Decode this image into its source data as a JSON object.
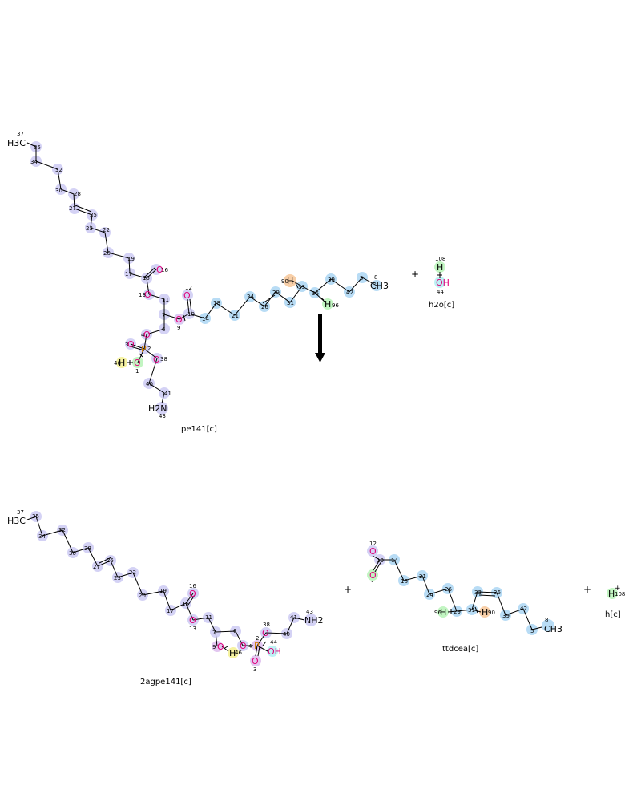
{
  "reaction": {
    "arrow": "down",
    "plus_sign": "+"
  },
  "molecules": {
    "pe141": {
      "name": "pe141[c]",
      "labels": {
        "methyl": "H3C",
        "amine": "H2N",
        "h_46": "H",
        "o1": "O",
        "o3": "O",
        "o4": "O",
        "o9": "O",
        "o12": "O",
        "o13": "O",
        "o16": "O",
        "o38": "O",
        "p2": "P",
        "h90": "H",
        "h96": "H",
        "ch3_8": "CH3"
      },
      "atom_numbers": [
        "37",
        "35",
        "34",
        "32",
        "30",
        "28",
        "27",
        "25",
        "23",
        "22",
        "20",
        "19",
        "17",
        "15",
        "16",
        "13",
        "11",
        "7",
        "6",
        "4",
        "3",
        "2",
        "1",
        "46",
        "38",
        "40",
        "41",
        "43",
        "12",
        "10",
        "9",
        "14",
        "18",
        "21",
        "24",
        "26",
        "29",
        "31",
        "90",
        "33",
        "36",
        "96",
        "39",
        "42",
        "5",
        "8"
      ]
    },
    "h2o": {
      "name": "h2o[c]",
      "labels": {
        "h": "H",
        "oh": "OH"
      },
      "atom_numbers": [
        "108",
        "44"
      ]
    },
    "agpe141": {
      "name": "2agpe141[c]",
      "labels": {
        "methyl": "H3C",
        "amine": "NH2",
        "o9": "O",
        "h64": "H",
        "oh44": "OH",
        "o3": "O",
        "o4": "O",
        "o13": "O",
        "o16": "O",
        "o38": "O",
        "p2": "P"
      },
      "atom_numbers": [
        "37",
        "35",
        "34",
        "32",
        "30",
        "28",
        "27",
        "25",
        "23",
        "22",
        "20",
        "19",
        "17",
        "15",
        "16",
        "13",
        "11",
        "7",
        "6",
        "9",
        "46",
        "4",
        "2",
        "3",
        "38",
        "40",
        "41",
        "43",
        "44"
      ]
    },
    "ttdcea": {
      "name": "ttdcea[c]",
      "labels": {
        "o12": "O",
        "o1": "O",
        "h96": "H",
        "h90": "H",
        "ch3": "CH3"
      },
      "atom_numbers": [
        "12",
        "10",
        "1",
        "14",
        "18",
        "21",
        "24",
        "26",
        "96",
        "29",
        "31",
        "90",
        "33",
        "36",
        "39",
        "42",
        "5",
        "8"
      ]
    },
    "h": {
      "name": "h[c]",
      "labels": {
        "h": "H"
      },
      "atom_numbers": [
        "108"
      ]
    }
  },
  "colors": {
    "highlight_blue": "#b8dcf5",
    "highlight_lavender": "#d4d2f5",
    "highlight_purple": "#e2c6f0",
    "highlight_green": "#c2f5c2",
    "highlight_yellow": "#f5f2a0",
    "highlight_orange": "#f8cfa8",
    "highlight_cyan": "#bdf2f5",
    "oxygen": "#e0007a",
    "nitrogen": "#2020d0",
    "phosphorus": "#d08000"
  }
}
